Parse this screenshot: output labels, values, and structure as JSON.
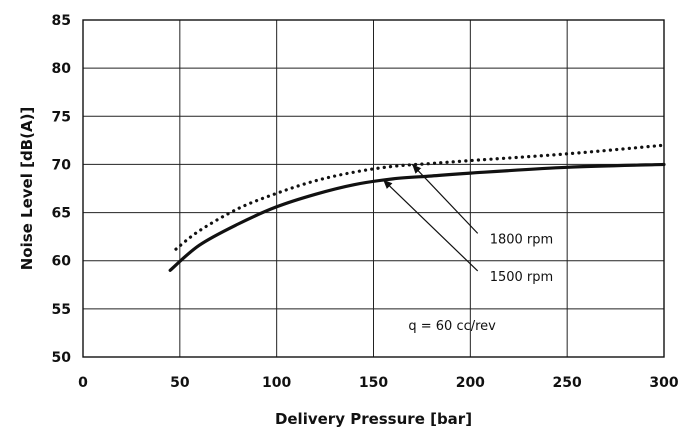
{
  "chart_data": {
    "type": "line",
    "title": "",
    "xlabel": "Delivery Pressure [bar]",
    "ylabel": "Noise Level [dB(A)]",
    "xlim": [
      0,
      300
    ],
    "ylim": [
      50,
      85
    ],
    "x_ticks": [
      0,
      50,
      100,
      150,
      200,
      250,
      300
    ],
    "y_ticks": [
      50,
      55,
      60,
      65,
      70,
      75,
      80,
      85
    ],
    "x_tick_labels": [
      "0",
      "50",
      "100",
      "150",
      "200",
      "250",
      "300"
    ],
    "y_tick_labels": [
      "50",
      "55",
      "60",
      "65",
      "70",
      "75",
      "80",
      "85"
    ],
    "grid": true,
    "series": [
      {
        "name": "1500 rpm",
        "style": "solid",
        "color": "#111111",
        "x": [
          45,
          60,
          80,
          100,
          120,
          140,
          160,
          180,
          200,
          250,
          300
        ],
        "y": [
          59.0,
          61.6,
          63.8,
          65.6,
          66.9,
          67.9,
          68.5,
          68.8,
          69.1,
          69.7,
          70.0
        ]
      },
      {
        "name": "1800 rpm",
        "style": "dotted",
        "color": "#111111",
        "x": [
          48,
          60,
          80,
          100,
          120,
          140,
          160,
          180,
          200,
          250,
          300
        ],
        "y": [
          61.2,
          63.1,
          65.4,
          67.0,
          68.3,
          69.2,
          69.8,
          70.1,
          70.4,
          71.1,
          72.0
        ]
      }
    ],
    "annotations": [
      {
        "text": "1800 rpm",
        "x": 210,
        "y": 61.8,
        "arrow_to": [
          170,
          70.0
        ]
      },
      {
        "text": "1500 rpm",
        "x": 210,
        "y": 57.9,
        "arrow_to": [
          155,
          68.4
        ]
      },
      {
        "text": "q = 60 cc/rev",
        "x": 168,
        "y": 52.8
      }
    ]
  }
}
